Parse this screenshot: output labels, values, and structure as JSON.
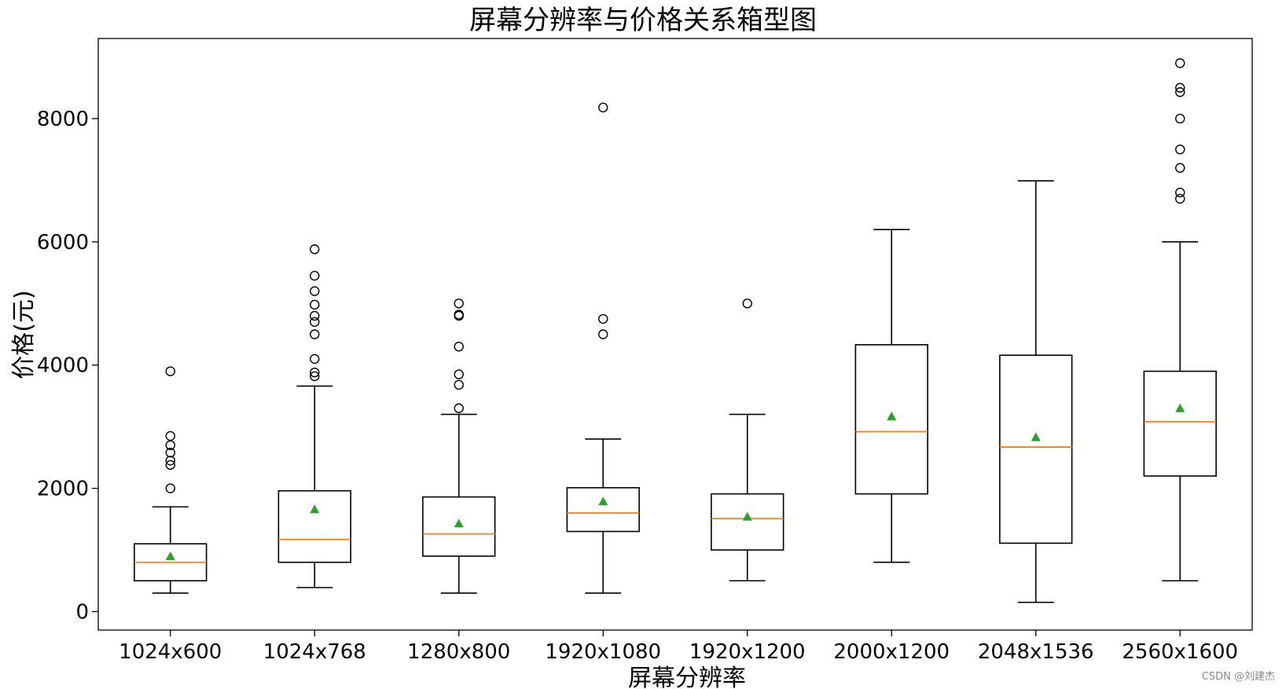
{
  "chart_data": {
    "type": "box",
    "title": "屏幕分辨率与价格关系箱型图",
    "xlabel": "屏幕分辨率",
    "ylabel": "价格(元)",
    "ylim": [
      -300,
      9300
    ],
    "yticks": [
      0,
      2000,
      4000,
      6000,
      8000
    ],
    "grid": false,
    "colors": {
      "box": "#000000",
      "median": "#ff7f0e",
      "mean": "#2ca02c",
      "flier": "#000000"
    },
    "categories": [
      "1024x600",
      "1024x768",
      "1280x800",
      "1920x1080",
      "1920x1200",
      "2000x1200",
      "2048x1536",
      "2560x1600"
    ],
    "boxes": [
      {
        "whislo": 300,
        "q1": 500,
        "med": 800,
        "q3": 1100,
        "whishi": 1700,
        "mean": 900,
        "fliers": [
          2000,
          2380,
          2450,
          2580,
          2700,
          2850,
          3900
        ]
      },
      {
        "whislo": 390,
        "q1": 800,
        "med": 1170,
        "q3": 1960,
        "whishi": 3660,
        "mean": 1660,
        "fliers": [
          3820,
          3880,
          4100,
          4500,
          4700,
          4800,
          4980,
          5200,
          5450,
          5880
        ]
      },
      {
        "whislo": 300,
        "q1": 900,
        "med": 1260,
        "q3": 1860,
        "whishi": 3200,
        "mean": 1430,
        "fliers": [
          3300,
          3680,
          3850,
          4300,
          4800,
          4820,
          5000
        ]
      },
      {
        "whislo": 300,
        "q1": 1300,
        "med": 1600,
        "q3": 2010,
        "whishi": 2800,
        "mean": 1790,
        "fliers": [
          4500,
          4750,
          8180
        ]
      },
      {
        "whislo": 500,
        "q1": 1000,
        "med": 1510,
        "q3": 1910,
        "whishi": 3200,
        "mean": 1540,
        "fliers": [
          5000
        ]
      },
      {
        "whislo": 800,
        "q1": 1910,
        "med": 2920,
        "q3": 4330,
        "whishi": 6200,
        "mean": 3170,
        "fliers": []
      },
      {
        "whislo": 150,
        "q1": 1110,
        "med": 2670,
        "q3": 4160,
        "whishi": 6990,
        "mean": 2830,
        "fliers": []
      },
      {
        "whislo": 500,
        "q1": 2200,
        "med": 3080,
        "q3": 3900,
        "whishi": 6000,
        "mean": 3300,
        "fliers": [
          6700,
          6800,
          7200,
          7500,
          8000,
          8430,
          8500,
          8900
        ]
      }
    ]
  },
  "watermark": "CSDN @刘建杰"
}
